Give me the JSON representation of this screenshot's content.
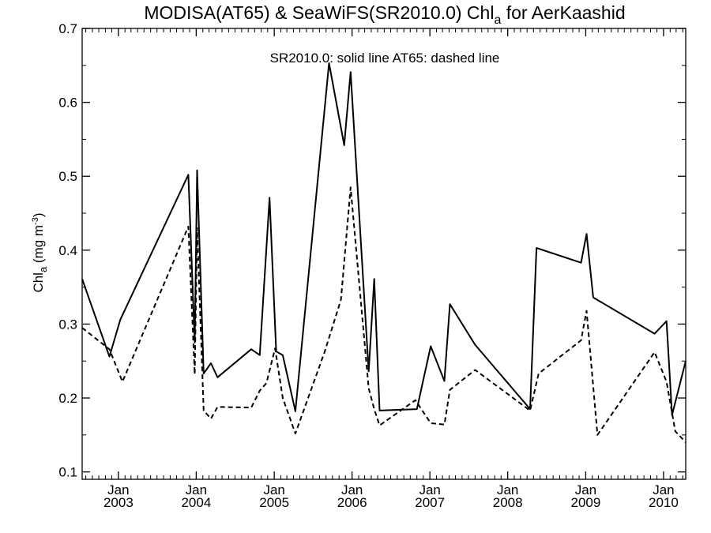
{
  "chart_data": {
    "type": "line",
    "title": {
      "main": "MODISA(AT65) & SeaWiFS(SR2010.0)  Chl",
      "sub": "a",
      "tail": " for AerKaashid"
    },
    "annotation": "SR2010.0: solid line   AT65: dashed line",
    "ylabel": {
      "base": "Chl",
      "sub": "a",
      "unit": " (mg m",
      "sup": "-3",
      "close": ")"
    },
    "ylim": [
      0.09,
      0.7
    ],
    "yticks": [
      {
        "value": 0.1,
        "label": "0.1"
      },
      {
        "value": 0.2,
        "label": "0.2"
      },
      {
        "value": 0.3,
        "label": "0.3"
      },
      {
        "value": 0.4,
        "label": "0.4"
      },
      {
        "value": 0.5,
        "label": "0.5"
      },
      {
        "value": 0.6,
        "label": "0.6"
      },
      {
        "value": 0.7,
        "label": "0.7"
      }
    ],
    "xlim": [
      "2002-07-15",
      "2010-04-15"
    ],
    "xticks": [
      {
        "date": "2003-01-01",
        "month": "Jan",
        "year": "2003"
      },
      {
        "date": "2004-01-01",
        "month": "Jan",
        "year": "2004"
      },
      {
        "date": "2005-01-01",
        "month": "Jan",
        "year": "2005"
      },
      {
        "date": "2006-01-01",
        "month": "Jan",
        "year": "2006"
      },
      {
        "date": "2007-01-01",
        "month": "Jan",
        "year": "2007"
      },
      {
        "date": "2008-01-01",
        "month": "Jan",
        "year": "2008"
      },
      {
        "date": "2009-01-01",
        "month": "Jan",
        "year": "2009"
      },
      {
        "date": "2010-01-01",
        "month": "Jan",
        "year": "2010"
      }
    ],
    "series": [
      {
        "name": "SR2010.0",
        "style": "solid",
        "color": "#000000",
        "x": [
          "2002-07-15",
          "2002-11-20",
          "2003-01-10",
          "2003-11-25",
          "2003-12-25",
          "2004-01-05",
          "2004-02-05",
          "2004-03-10",
          "2004-04-10",
          "2004-09-15",
          "2004-10-25",
          "2004-12-10",
          "2005-01-10",
          "2005-02-10",
          "2005-04-10",
          "2005-09-15",
          "2005-11-25",
          "2005-12-25",
          "2006-03-20",
          "2006-04-15",
          "2006-05-10",
          "2006-11-01",
          "2007-01-05",
          "2007-03-10",
          "2007-04-05",
          "2007-08-01",
          "2008-04-15",
          "2008-05-15",
          "2008-12-10",
          "2009-01-05",
          "2009-02-05",
          "2009-11-20",
          "2010-01-15",
          "2010-02-10",
          "2010-04-15"
        ],
        "y": [
          0.361,
          0.256,
          0.306,
          0.502,
          0.275,
          0.508,
          0.233,
          0.247,
          0.228,
          0.266,
          0.258,
          0.471,
          0.263,
          0.258,
          0.182,
          0.653,
          0.542,
          0.641,
          0.236,
          0.361,
          0.183,
          0.185,
          0.27,
          0.223,
          0.327,
          0.272,
          0.185,
          0.403,
          0.383,
          0.422,
          0.336,
          0.287,
          0.304,
          0.177,
          0.25
        ]
      },
      {
        "name": "AT65",
        "style": "dashed",
        "color": "#000000",
        "x": [
          "2002-07-15",
          "2002-11-20",
          "2003-01-20",
          "2003-11-25",
          "2003-12-25",
          "2004-01-05",
          "2004-02-05",
          "2004-03-10",
          "2004-04-10",
          "2004-09-15",
          "2004-10-25",
          "2004-11-25",
          "2005-01-05",
          "2005-02-10",
          "2005-04-10",
          "2005-08-25",
          "2005-11-10",
          "2005-12-25",
          "2006-03-20",
          "2006-04-15",
          "2006-05-10",
          "2006-10-25",
          "2007-01-05",
          "2007-03-10",
          "2007-04-05",
          "2007-08-01",
          "2008-04-15",
          "2008-05-25",
          "2008-12-10",
          "2009-01-05",
          "2009-02-25",
          "2009-11-20",
          "2010-01-15",
          "2010-02-25",
          "2010-04-15"
        ],
        "y": [
          0.295,
          0.266,
          0.222,
          0.432,
          0.232,
          0.43,
          0.183,
          0.172,
          0.188,
          0.187,
          0.21,
          0.22,
          0.267,
          0.2,
          0.152,
          0.262,
          0.333,
          0.485,
          0.213,
          0.185,
          0.163,
          0.197,
          0.166,
          0.164,
          0.211,
          0.238,
          0.183,
          0.233,
          0.278,
          0.318,
          0.15,
          0.262,
          0.222,
          0.155,
          0.14
        ]
      }
    ],
    "grid": false,
    "legend": "none"
  }
}
